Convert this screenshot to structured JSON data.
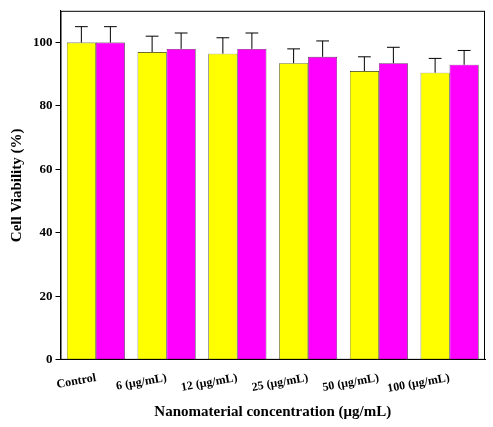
{
  "chart_data": {
    "type": "bar",
    "x_label": "Nanomaterial concentration (μg/mL)",
    "y_label": "Cell Viability (%)",
    "categories": [
      "Control",
      "6 (μg/mL)",
      "12 (μg/mL)",
      "25 (μg/mL)",
      "50 (μg/mL)",
      "100 (μg/mL)"
    ],
    "series": [
      {
        "color": "#ffff00",
        "values": [
          100,
          97,
          96.5,
          93.5,
          91,
          90.5
        ],
        "errors": [
          5,
          5,
          5,
          4.5,
          4.5,
          4.5
        ]
      },
      {
        "color": "#ff00ff",
        "values": [
          100,
          98,
          98,
          95.5,
          93.5,
          93
        ],
        "errors": [
          5,
          5,
          5,
          5,
          5,
          4.5
        ]
      }
    ],
    "ylim": [
      0,
      110
    ],
    "yticks": [
      0,
      20,
      40,
      60,
      80,
      100
    ],
    "grid": false
  }
}
